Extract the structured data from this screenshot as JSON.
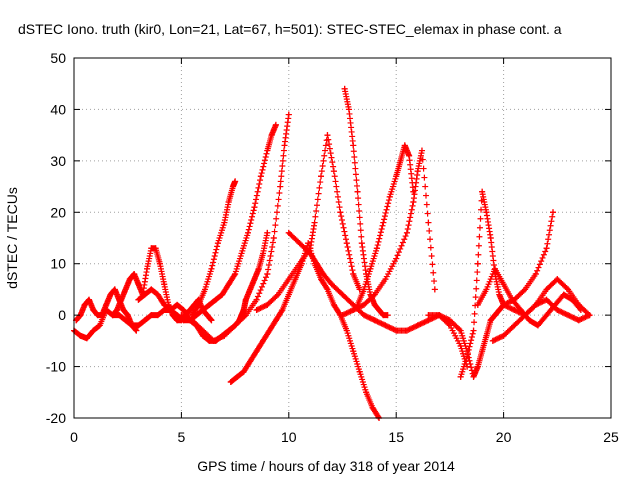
{
  "chart_data": {
    "type": "scatter",
    "title": "dSTEC Iono. truth (kir0, Lon=21, Lat=67, h=501): STEC-STEC_elemax in phase cont. a",
    "xlabel": "GPS time / hours of day 318 of year 2014",
    "ylabel": "dSTEC  / TECUs",
    "xlim": [
      0,
      25
    ],
    "ylim": [
      -20,
      50
    ],
    "xticks": [
      0,
      5,
      10,
      15,
      20,
      25
    ],
    "yticks": [
      -20,
      -10,
      0,
      10,
      20,
      30,
      40,
      50
    ],
    "grid": true,
    "marker": "+",
    "marker_color": "#ff0000",
    "series": [
      {
        "x": [
          0.0,
          0.3,
          0.6,
          0.9,
          1.2,
          1.5,
          1.8,
          2.1,
          2.4,
          2.7,
          3.0,
          3.3,
          3.6,
          3.9,
          4.2,
          4.5,
          4.8,
          5.1,
          5.4,
          5.7,
          6.0,
          6.3,
          6.6,
          6.9,
          7.2,
          7.5,
          7.7,
          7.8,
          7.9,
          8.0,
          8.2,
          8.4,
          8.6,
          8.8,
          9.0
        ],
        "y": [
          -3,
          -4,
          -4.5,
          -3,
          -2,
          1,
          0,
          0,
          -1,
          -2,
          -2,
          -1,
          0,
          0,
          1,
          1,
          2,
          1,
          -1,
          -2,
          -4,
          -5,
          -5,
          -4,
          -3,
          -2,
          -1,
          0,
          1,
          3,
          5,
          7,
          9,
          12,
          16
        ]
      },
      {
        "x": [
          0.1,
          0.3,
          0.5,
          0.7,
          0.9,
          1.1,
          1.3,
          1.5,
          1.7,
          1.9,
          2.1,
          2.3,
          2.5,
          2.7,
          2.9
        ],
        "y": [
          -1,
          0,
          2,
          3,
          1,
          0,
          0,
          2,
          4,
          5,
          3,
          1,
          0,
          -2,
          -3
        ]
      },
      {
        "x": [
          1.8,
          2.0,
          2.2,
          2.4,
          2.6,
          2.8,
          3.0,
          3.2,
          3.4,
          3.6,
          3.8,
          4.0,
          4.2,
          4.4,
          4.6,
          4.8,
          5.0,
          5.2,
          5.4,
          5.6,
          5.8,
          6.0,
          6.2,
          6.4
        ],
        "y": [
          0,
          1,
          3,
          5,
          7,
          8,
          6,
          4,
          9,
          13,
          13,
          10,
          6,
          2,
          0,
          -1,
          -1,
          0,
          1,
          2,
          3,
          1,
          0,
          -1
        ]
      },
      {
        "x": [
          3.0,
          3.3,
          3.6,
          3.9,
          4.2,
          4.5,
          4.8,
          5.1,
          5.4,
          5.7,
          6.0,
          6.3,
          6.6,
          6.9,
          7.2,
          7.5,
          7.8,
          8.1,
          8.4,
          8.7,
          9.0,
          9.2,
          9.4
        ],
        "y": [
          3,
          4,
          5,
          4,
          2,
          1,
          0,
          -1,
          -1,
          0,
          1,
          2,
          3,
          4,
          6,
          8,
          12,
          16,
          21,
          27,
          32,
          35,
          37
        ]
      },
      {
        "x": [
          5.5,
          5.8,
          6.1,
          6.4,
          6.7,
          7.0,
          7.2,
          7.4,
          7.5
        ],
        "y": [
          0,
          2,
          5,
          9,
          14,
          18,
          22,
          25,
          26
        ]
      },
      {
        "x": [
          5.0,
          5.5,
          6.0,
          6.5,
          7.0,
          7.5,
          8.0,
          8.5,
          9.0,
          9.3,
          9.6,
          9.8,
          10.0
        ],
        "y": [
          0,
          -1,
          -3,
          -5,
          -4,
          -2,
          0,
          3,
          8,
          15,
          25,
          33,
          39
        ]
      },
      {
        "x": [
          7.3,
          7.6,
          7.9,
          8.2,
          8.5,
          8.8,
          9.1,
          9.4,
          9.7,
          10.0,
          10.3,
          10.6,
          10.9,
          11.2,
          11.5,
          11.8,
          12.1,
          12.4,
          12.7,
          13.0,
          13.3,
          13.6,
          13.9,
          14.2
        ],
        "y": [
          -13,
          -12,
          -11,
          -9,
          -7,
          -5,
          -3,
          -1,
          1,
          4,
          7,
          10,
          14,
          10,
          7,
          5,
          2,
          0,
          -3,
          -7,
          -11,
          -15,
          -18,
          -20
        ]
      },
      {
        "x": [
          8.5,
          9.0,
          9.5,
          10.0,
          10.5,
          11.0,
          11.2,
          11.5,
          11.8,
          12.1,
          12.4,
          12.7,
          13.0,
          13.3
        ],
        "y": [
          1,
          2,
          4,
          7,
          10,
          13,
          18,
          27,
          35,
          28,
          20,
          14,
          8,
          5
        ]
      },
      {
        "x": [
          10.0,
          10.5,
          11.0,
          11.3,
          11.6,
          12.0,
          12.5,
          13.0,
          13.5,
          14.0,
          14.5,
          15.0,
          15.5,
          16.0,
          16.5,
          17.0,
          17.5,
          18.0,
          18.3
        ],
        "y": [
          16,
          14,
          12,
          10,
          8,
          6,
          4,
          2,
          0,
          -1,
          -2,
          -3,
          -3,
          -2,
          -1,
          0,
          -2,
          -6,
          -10
        ]
      },
      {
        "x": [
          12.6,
          12.8,
          13.0,
          13.2,
          13.4,
          13.6,
          13.8,
          14.0,
          14.2,
          14.4,
          14.6
        ],
        "y": [
          44,
          40,
          33,
          24,
          14,
          8,
          4,
          2,
          1,
          0,
          0
        ]
      },
      {
        "x": [
          13.2,
          13.5,
          13.8,
          14.1,
          14.4,
          14.7,
          15.0,
          15.2,
          15.4,
          15.6,
          15.8
        ],
        "y": [
          2,
          5,
          9,
          13,
          18,
          23,
          27,
          30,
          33,
          31,
          24
        ]
      },
      {
        "x": [
          12.5,
          13.0,
          13.5,
          14.0,
          14.5,
          15.0,
          15.5,
          15.8,
          16.0,
          16.2,
          16.5,
          16.8
        ],
        "y": [
          0,
          1,
          2,
          4,
          7,
          11,
          16,
          22,
          28,
          32,
          18,
          5
        ]
      },
      {
        "x": [
          16.5,
          17.0,
          17.5,
          18.0,
          18.3,
          18.6,
          18.8,
          19.0,
          19.2,
          19.4,
          19.6,
          19.8,
          20.0,
          20.5,
          21.0,
          21.5,
          22.0,
          22.3
        ],
        "y": [
          0,
          0,
          -1,
          -3,
          -7,
          -12,
          -10,
          -7,
          -4,
          -1,
          0,
          1,
          2,
          3,
          5,
          8,
          13,
          20
        ]
      },
      {
        "x": [
          18.0,
          18.3,
          18.6,
          18.8,
          19.0,
          19.2,
          19.4,
          19.6,
          19.8,
          20.0,
          20.5,
          21.0,
          21.5,
          22.0,
          22.5,
          23.0,
          23.5,
          24.0
        ],
        "y": [
          -12,
          -8,
          -3,
          10,
          24,
          20,
          15,
          8,
          4,
          2,
          1,
          0,
          2,
          5,
          7,
          5,
          2,
          0
        ]
      },
      {
        "x": [
          19.5,
          20.0,
          20.5,
          21.0,
          21.5,
          22.0,
          22.5,
          23.0,
          23.5,
          24.0
        ],
        "y": [
          -5,
          -4,
          -2,
          0,
          2,
          3,
          1,
          0,
          -1,
          0
        ]
      },
      {
        "x": [
          18.8,
          19.2,
          19.6,
          20.0,
          20.4,
          20.8,
          21.2,
          21.6,
          22.0,
          22.4,
          22.8,
          23.2,
          23.6
        ],
        "y": [
          2,
          5,
          9,
          6,
          3,
          1,
          -1,
          -2,
          0,
          2,
          4,
          3,
          1
        ]
      }
    ]
  }
}
